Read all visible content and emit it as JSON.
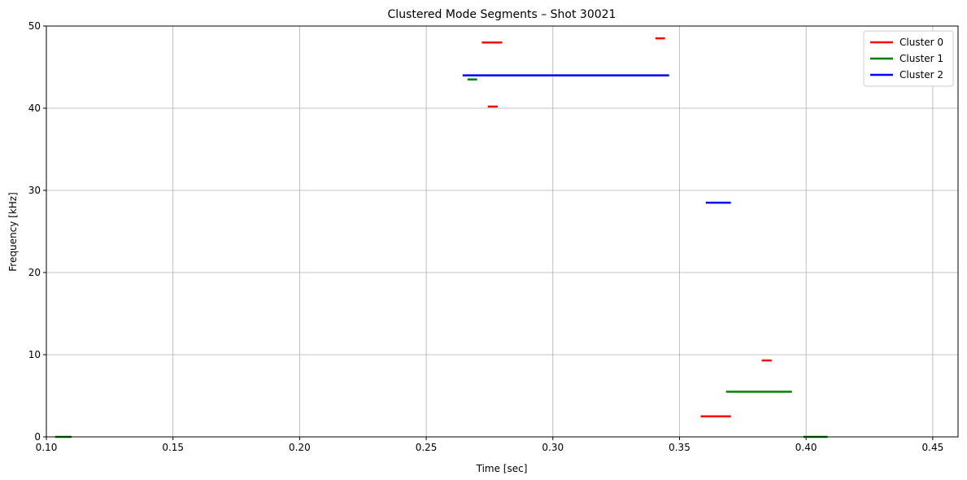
{
  "chart_data": {
    "type": "segments",
    "title": "Clustered Mode Segments – Shot 30021",
    "x_label": "Time [sec]",
    "y_label": "Frequency [kHz]",
    "xlim": [
      0.1,
      0.46
    ],
    "ylim": [
      0,
      50
    ],
    "xticks": [
      {
        "value": 0.1,
        "label": "0.10"
      },
      0.15,
      {
        "value": 0.2,
        "label": "0.20"
      },
      0.25,
      {
        "value": 0.3,
        "label": "0.30"
      },
      0.35,
      {
        "value": 0.4,
        "label": "0.40"
      },
      0.45
    ],
    "yticks": [
      0,
      10,
      20,
      30,
      40,
      50
    ],
    "grid": true,
    "legend": "upper right",
    "series": [
      {
        "name": "Cluster 0",
        "color": "#ff0000",
        "x0": [
          0.272,
          0.3405,
          0.2743,
          0.3584,
          0.3825
        ],
        "x1": [
          0.28,
          0.3443,
          0.2782,
          0.3703,
          0.3864
        ],
        "values": [
          48.0,
          48.5,
          40.2,
          2.5,
          9.3
        ]
      },
      {
        "name": "Cluster 1",
        "color": "#008000",
        "x0": [
          0.2663,
          0.3684,
          0.1035,
          0.3989
        ],
        "x1": [
          0.2701,
          0.3944,
          0.11,
          0.4085
        ],
        "values": [
          43.5,
          5.5,
          0,
          0
        ]
      },
      {
        "name": "Cluster 2",
        "color": "#0000ff",
        "x0": [
          0.2644,
          0.3604
        ],
        "x1": [
          0.3459,
          0.3703
        ],
        "values": [
          44.0,
          28.5
        ]
      }
    ]
  }
}
